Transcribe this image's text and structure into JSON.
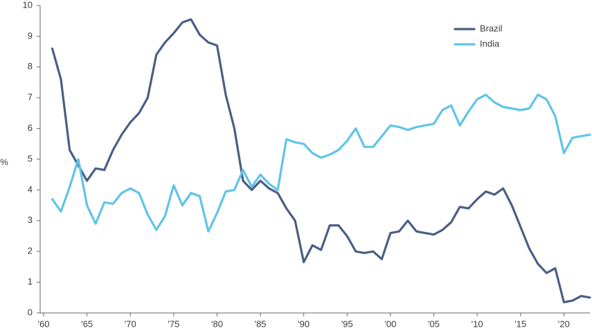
{
  "chart_data": {
    "type": "line",
    "title": "",
    "xlabel": "",
    "ylabel": "%",
    "ylim": [
      0,
      10
    ],
    "xlim": [
      1960,
      2023
    ],
    "y_ticks": [
      "0",
      "1",
      "2",
      "3",
      "4",
      "5",
      "6",
      "7",
      "8",
      "9",
      "10"
    ],
    "x_ticks": [
      {
        "value": 1960,
        "label": "'60"
      },
      {
        "value": 1965,
        "label": "'65"
      },
      {
        "value": 1970,
        "label": "'70"
      },
      {
        "value": 1975,
        "label": "'75"
      },
      {
        "value": 1980,
        "label": "'80"
      },
      {
        "value": 1985,
        "label": "'85"
      },
      {
        "value": 1990,
        "label": "'90"
      },
      {
        "value": 1995,
        "label": "'95"
      },
      {
        "value": 2000,
        "label": "'00"
      },
      {
        "value": 2005,
        "label": "'05"
      },
      {
        "value": 2010,
        "label": "'10"
      },
      {
        "value": 2015,
        "label": "'15"
      },
      {
        "value": 2020,
        "label": "'20"
      }
    ],
    "grid": false,
    "legend_position": "top-right",
    "x": [
      1961,
      1962,
      1963,
      1964,
      1965,
      1966,
      1967,
      1968,
      1969,
      1970,
      1971,
      1972,
      1973,
      1974,
      1975,
      1976,
      1977,
      1978,
      1979,
      1980,
      1981,
      1982,
      1983,
      1984,
      1985,
      1986,
      1987,
      1988,
      1989,
      1990,
      1991,
      1992,
      1993,
      1994,
      1995,
      1996,
      1997,
      1998,
      1999,
      2000,
      2001,
      2002,
      2003,
      2004,
      2005,
      2006,
      2007,
      2008,
      2009,
      2010,
      2011,
      2012,
      2013,
      2014,
      2015,
      2016,
      2017,
      2018,
      2019,
      2020,
      2021,
      2022,
      2023
    ],
    "series": [
      {
        "name": "Brazil",
        "color": "#4a5e85",
        "values": [
          8.6,
          7.6,
          5.3,
          4.8,
          4.3,
          4.7,
          4.65,
          5.3,
          5.8,
          6.2,
          6.5,
          7.0,
          8.4,
          8.8,
          9.1,
          9.45,
          9.55,
          9.05,
          8.8,
          8.7,
          7.1,
          6.0,
          4.3,
          4.0,
          4.3,
          4.05,
          3.9,
          3.4,
          3.0,
          1.65,
          2.2,
          2.05,
          2.85,
          2.85,
          2.5,
          2.0,
          1.95,
          2.0,
          1.75,
          2.6,
          2.65,
          3.0,
          2.65,
          2.6,
          2.55,
          2.7,
          2.95,
          3.45,
          3.4,
          3.7,
          3.95,
          3.85,
          4.05,
          3.5,
          2.8,
          2.1,
          1.6,
          1.3,
          1.45,
          0.35,
          0.4,
          0.55,
          0.5
        ]
      },
      {
        "name": "India",
        "color": "#5fc4e8",
        "values": [
          3.7,
          3.3,
          4.1,
          5.0,
          3.5,
          2.9,
          3.6,
          3.55,
          3.9,
          4.05,
          3.9,
          3.2,
          2.7,
          3.15,
          4.15,
          3.5,
          3.9,
          3.8,
          2.65,
          3.25,
          3.95,
          4.0,
          4.65,
          4.1,
          4.5,
          4.2,
          4.0,
          5.65,
          5.55,
          5.5,
          5.2,
          5.05,
          5.15,
          5.3,
          5.6,
          6.0,
          5.4,
          5.4,
          5.75,
          6.1,
          6.05,
          5.95,
          6.05,
          6.1,
          6.15,
          6.6,
          6.75,
          6.1,
          6.55,
          6.95,
          7.1,
          6.85,
          6.7,
          6.65,
          6.6,
          6.65,
          7.1,
          6.95,
          6.4,
          5.2,
          5.7,
          5.75,
          5.8
        ]
      }
    ]
  }
}
